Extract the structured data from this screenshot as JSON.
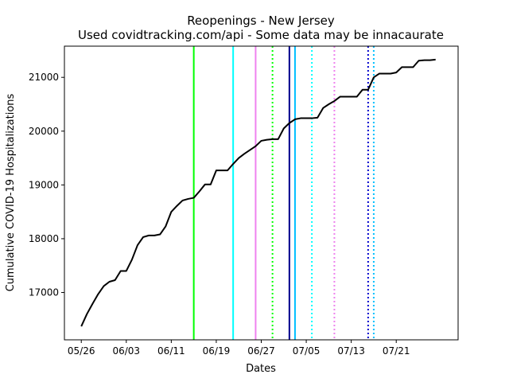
{
  "chart_data": {
    "type": "line",
    "title": "Reopenings - New Jersey",
    "subtitle": "Used covidtracking.com/api - Some data may be innacaurate",
    "xlabel": "Dates",
    "ylabel": "Cumulative COVID-19 Hospitalizations",
    "x_ticks": [
      "05/26",
      "06/03",
      "06/11",
      "06/19",
      "06/27",
      "07/05",
      "07/13",
      "07/21"
    ],
    "y_ticks": [
      17000,
      18000,
      19000,
      20000,
      21000
    ],
    "xlim": [
      "2020-05-23",
      "2020-08-01"
    ],
    "ylim": [
      16120,
      21580
    ],
    "grid": false,
    "series": [
      {
        "color": "#000000",
        "x": [
          "2020-05-26",
          "2020-05-27",
          "2020-05-28",
          "2020-05-29",
          "2020-05-30",
          "2020-05-31",
          "2020-06-01",
          "2020-06-02",
          "2020-06-03",
          "2020-06-04",
          "2020-06-05",
          "2020-06-06",
          "2020-06-07",
          "2020-06-08",
          "2020-06-09",
          "2020-06-10",
          "2020-06-11",
          "2020-06-12",
          "2020-06-13",
          "2020-06-14",
          "2020-06-15",
          "2020-06-16",
          "2020-06-17",
          "2020-06-18",
          "2020-06-19",
          "2020-06-20",
          "2020-06-21",
          "2020-06-22",
          "2020-06-23",
          "2020-06-24",
          "2020-06-25",
          "2020-06-26",
          "2020-06-27",
          "2020-06-28",
          "2020-06-29",
          "2020-06-30",
          "2020-07-01",
          "2020-07-02",
          "2020-07-03",
          "2020-07-04",
          "2020-07-05",
          "2020-07-06",
          "2020-07-07",
          "2020-07-08",
          "2020-07-09",
          "2020-07-10",
          "2020-07-11",
          "2020-07-12",
          "2020-07-13",
          "2020-07-14",
          "2020-07-15",
          "2020-07-16",
          "2020-07-17",
          "2020-07-18",
          "2020-07-19",
          "2020-07-20",
          "2020-07-21",
          "2020-07-22",
          "2020-07-23",
          "2020-07-24",
          "2020-07-25",
          "2020-07-26",
          "2020-07-27",
          "2020-07-28"
        ],
        "y": [
          16370,
          16600,
          16790,
          16970,
          17120,
          17200,
          17230,
          17400,
          17400,
          17610,
          17880,
          18030,
          18060,
          18060,
          18080,
          18230,
          18500,
          18610,
          18710,
          18740,
          18760,
          18880,
          19010,
          19010,
          19270,
          19270,
          19270,
          19390,
          19500,
          19580,
          19650,
          19720,
          19820,
          19840,
          19850,
          19850,
          20050,
          20150,
          20220,
          20240,
          20240,
          20240,
          20250,
          20430,
          20500,
          20560,
          20640,
          20640,
          20640,
          20640,
          20770,
          20770,
          21000,
          21070,
          21070,
          21070,
          21090,
          21190,
          21190,
          21190,
          21310,
          21320,
          21320,
          21330
        ]
      }
    ],
    "annotation_lines": [
      {
        "x": "2020-06-15",
        "color": "#00ff00",
        "style": "solid"
      },
      {
        "x": "2020-06-22",
        "color": "#00ffff",
        "style": "solid"
      },
      {
        "x": "2020-06-26",
        "color": "#ee82ee",
        "style": "solid"
      },
      {
        "x": "2020-06-29",
        "color": "#00ff00",
        "style": "dotted"
      },
      {
        "x": "2020-07-02",
        "color": "#00008b",
        "style": "solid"
      },
      {
        "x": "2020-07-03",
        "color": "#00bfff",
        "style": "solid"
      },
      {
        "x": "2020-07-06",
        "color": "#00ffff",
        "style": "dotted"
      },
      {
        "x": "2020-07-10",
        "color": "#ee82ee",
        "style": "dotted"
      },
      {
        "x": "2020-07-16",
        "color": "#0000cd",
        "style": "dotted"
      },
      {
        "x": "2020-07-17",
        "color": "#00bfff",
        "style": "dotted"
      }
    ]
  }
}
